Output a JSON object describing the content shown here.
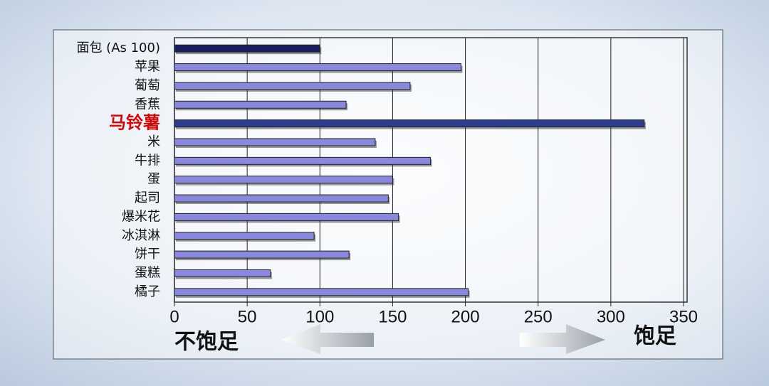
{
  "chart_data": {
    "type": "bar",
    "orientation": "horizontal",
    "categories": [
      "面包 (As 100)",
      "苹果",
      "葡萄",
      "香蕉",
      "马铃薯",
      "米",
      "牛排",
      "蛋",
      "起司",
      "爆米花",
      "冰淇淋",
      "饼干",
      "蛋糕",
      "橘子"
    ],
    "values": [
      100,
      197,
      162,
      118,
      323,
      138,
      176,
      150,
      147,
      154,
      96,
      120,
      66,
      202
    ],
    "colors": [
      "#1c1c60",
      "#8a88dc",
      "#8a88dc",
      "#8a88dc",
      "#2c3c90",
      "#8a88dc",
      "#8a88dc",
      "#8a88dc",
      "#8a88dc",
      "#8a88dc",
      "#8a88dc",
      "#8a88dc",
      "#8a88dc",
      "#8a88dc"
    ],
    "highlighted_category": "马铃薯",
    "highlight_color": "#cc0a0a",
    "xlim": [
      0,
      350
    ],
    "xticks": [
      0,
      50,
      100,
      150,
      200,
      250,
      300,
      350
    ],
    "grid": true,
    "annotations": [
      "不饱足",
      "饱足"
    ]
  }
}
